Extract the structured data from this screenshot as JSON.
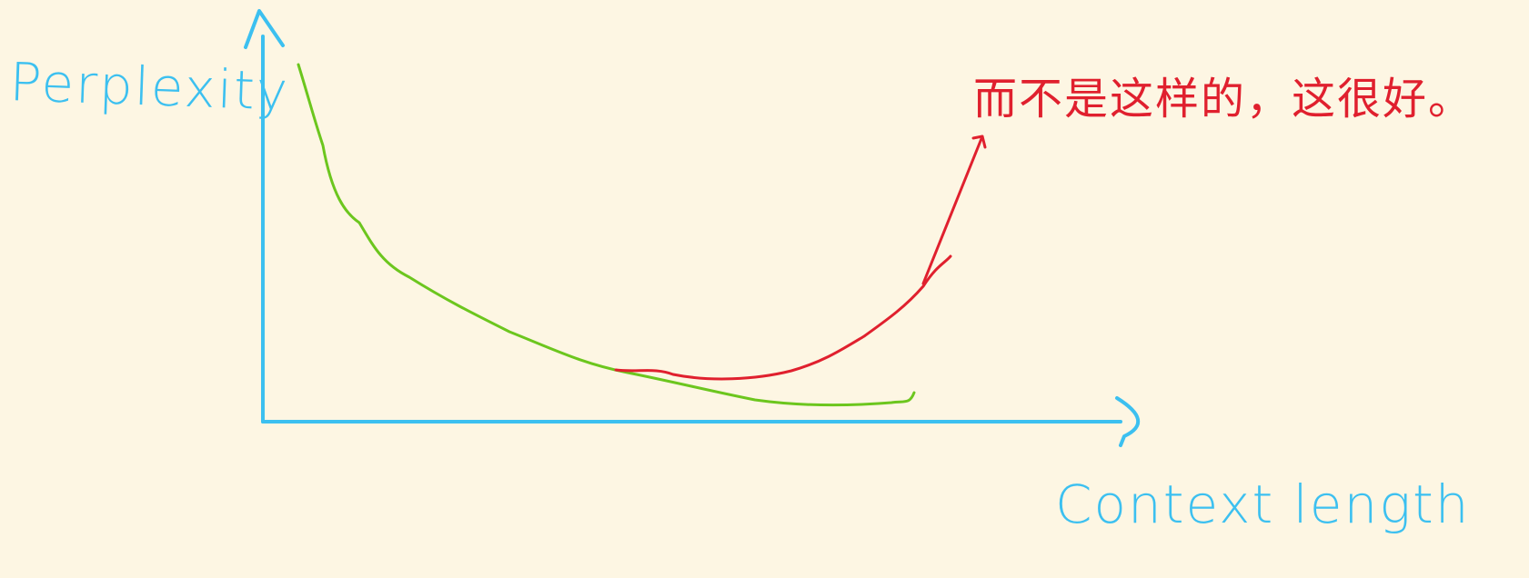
{
  "labels": {
    "y_axis": "Perplexity",
    "x_axis": "Context length",
    "annotation": "而不是这样的，这很好。"
  },
  "colors": {
    "background": "#fdf6e3",
    "axis": "#3cc0f0",
    "curve_good": "#6cc61e",
    "curve_bad": "#e0202e",
    "annotation": "#e0202e"
  }
}
